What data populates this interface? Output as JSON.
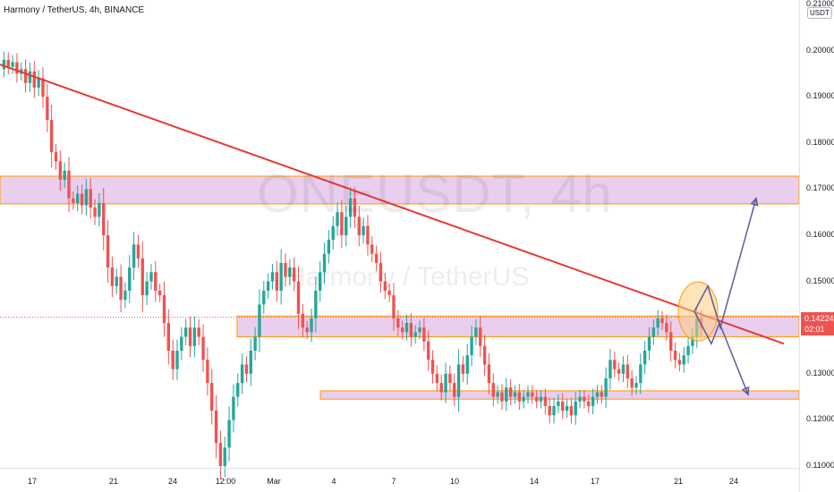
{
  "header": {
    "title": "Harmony / TetherUS, 4h, BINANCE"
  },
  "watermark": {
    "symbol": "ONEUSDT, 4h",
    "name": "Harmony / TetherUS"
  },
  "axis": {
    "unit": "USDT"
  },
  "last_price": {
    "value": "0.14224",
    "countdown": "02:01"
  },
  "colors": {
    "up": "#26a69a",
    "down": "#ef5350",
    "trend": "#e53935",
    "zone_fill": "#e1bee7",
    "zone_border": "#ff9800",
    "arrow": "#5c5c9a"
  },
  "chart_data": {
    "type": "candlestick",
    "title": "ONEUSDT, 4h",
    "y_ticks": [
      "0.21000",
      "0.20000",
      "0.19000",
      "0.18000",
      "0.17000",
      "0.16000",
      "0.15000",
      "0.13000",
      "0.12000",
      "0.11000"
    ],
    "ylim": [
      0.11,
      0.21
    ],
    "x_ticks": [
      "17",
      "21",
      "24",
      "12:00",
      "Mar",
      "4",
      "7",
      "10",
      "14",
      "17",
      "21",
      "24"
    ],
    "zones": [
      {
        "from": 0.1668,
        "to": 0.1728
      },
      {
        "from": 0.138,
        "to": 0.1425
      },
      {
        "from": 0.1245,
        "to": 0.1263
      }
    ],
    "trendline": {
      "start": 0.197,
      "end": 0.1365
    },
    "projection": {
      "pivot": 0.1435,
      "up_peak": 0.149,
      "up_target": 0.168,
      "down_peak": 0.1365,
      "down_target": 0.1255
    },
    "candle_closes": [
      0.198,
      0.1965,
      0.1975,
      0.195,
      0.196,
      0.193,
      0.1955,
      0.192,
      0.194,
      0.19,
      0.185,
      0.178,
      0.176,
      0.172,
      0.174,
      0.168,
      0.167,
      0.169,
      0.1665,
      0.17,
      0.166,
      0.164,
      0.167,
      0.16,
      0.153,
      0.149,
      0.151,
      0.146,
      0.148,
      0.153,
      0.158,
      0.155,
      0.147,
      0.15,
      0.152,
      0.148,
      0.147,
      0.141,
      0.135,
      0.131,
      0.135,
      0.138,
      0.14,
      0.136,
      0.14,
      0.138,
      0.133,
      0.128,
      0.122,
      0.115,
      0.11,
      0.114,
      0.12,
      0.125,
      0.128,
      0.132,
      0.13,
      0.135,
      0.138,
      0.145,
      0.148,
      0.15,
      0.152,
      0.148,
      0.154,
      0.151,
      0.153,
      0.15,
      0.143,
      0.14,
      0.139,
      0.142,
      0.148,
      0.152,
      0.156,
      0.159,
      0.162,
      0.165,
      0.16,
      0.164,
      0.168,
      0.164,
      0.16,
      0.162,
      0.158,
      0.156,
      0.154,
      0.15,
      0.148,
      0.147,
      0.142,
      0.14,
      0.139,
      0.141,
      0.138,
      0.139,
      0.14,
      0.137,
      0.133,
      0.13,
      0.128,
      0.126,
      0.13,
      0.128,
      0.125,
      0.132,
      0.13,
      0.134,
      0.138,
      0.14,
      0.136,
      0.132,
      0.128,
      0.125,
      0.126,
      0.124,
      0.127,
      0.125,
      0.126,
      0.124,
      0.125,
      0.126,
      0.125,
      0.124,
      0.125,
      0.123,
      0.121,
      0.123,
      0.124,
      0.122,
      0.123,
      0.121,
      0.124,
      0.125,
      0.124,
      0.123,
      0.125,
      0.126,
      0.125,
      0.129,
      0.133,
      0.131,
      0.13,
      0.132,
      0.129,
      0.127,
      0.128,
      0.132,
      0.135,
      0.138,
      0.14,
      0.142,
      0.141,
      0.139,
      0.135,
      0.133,
      0.132,
      0.134,
      0.136,
      0.138,
      0.142,
      0.14
    ]
  }
}
